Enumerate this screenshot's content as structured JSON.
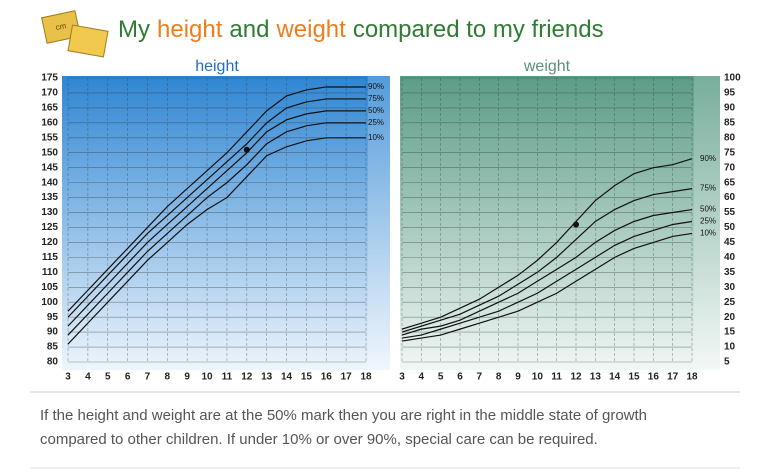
{
  "title_parts": [
    {
      "text": "My",
      "color": "#2e7d32"
    },
    {
      "text": "height",
      "color": "#f07d1a"
    },
    {
      "text": "and",
      "color": "#2e7d32"
    },
    {
      "text": "weight",
      "color": "#f07d1a"
    },
    {
      "text": "compared to my friends",
      "color": "#2e7d32"
    }
  ],
  "caption": [
    "If the height and weight are at the 50% mark then you are right in the middle state of growth",
    "compared to other children. If under 10% or over 90%, special care can be required."
  ],
  "chart_data": [
    {
      "type": "line",
      "title": "height",
      "title_color": "#1f6fc0",
      "y_axis_position": "left",
      "x": [
        3,
        4,
        5,
        6,
        7,
        8,
        9,
        10,
        11,
        12,
        13,
        14,
        15,
        16,
        17,
        18
      ],
      "xlim": [
        3,
        18
      ],
      "xticks": [
        3,
        4,
        5,
        6,
        7,
        8,
        9,
        10,
        11,
        12,
        13,
        14,
        15,
        16,
        17,
        18
      ],
      "ylim": [
        80,
        175
      ],
      "yticks": [
        80,
        85,
        90,
        95,
        100,
        105,
        110,
        115,
        120,
        125,
        130,
        135,
        140,
        145,
        150,
        155,
        160,
        165,
        170,
        175
      ],
      "grid": true,
      "series": [
        {
          "name": "90%",
          "color": "#111111",
          "values": [
            97,
            104,
            111,
            118,
            125,
            132,
            138,
            144,
            150,
            157,
            164,
            169,
            171,
            172,
            172,
            172
          ]
        },
        {
          "name": "75%",
          "color": "#111111",
          "values": [
            95,
            102,
            109,
            116,
            123,
            129,
            135,
            141,
            147,
            153,
            160,
            165,
            167,
            168,
            168,
            168
          ]
        },
        {
          "name": "50%",
          "color": "#111111",
          "values": [
            92,
            99,
            106,
            113,
            120,
            126,
            132,
            138,
            144,
            150,
            157,
            161,
            163,
            164,
            164,
            164
          ]
        },
        {
          "name": "25%",
          "color": "#111111",
          "values": [
            89,
            96,
            103,
            110,
            117,
            123,
            129,
            135,
            140,
            146,
            153,
            157,
            159,
            160,
            160,
            160
          ]
        },
        {
          "name": "10%",
          "color": "#111111",
          "values": [
            86,
            93,
            100,
            107,
            114,
            120,
            126,
            131,
            135,
            142,
            149,
            152,
            154,
            155,
            155,
            155
          ]
        }
      ],
      "point": {
        "x": 12,
        "y": 151
      }
    },
    {
      "type": "line",
      "title": "weight",
      "title_color": "#5a8f7b",
      "y_axis_position": "right",
      "x": [
        3,
        4,
        5,
        6,
        7,
        8,
        9,
        10,
        11,
        12,
        13,
        14,
        15,
        16,
        17,
        18
      ],
      "xlim": [
        3,
        18
      ],
      "xticks": [
        3,
        4,
        5,
        6,
        7,
        8,
        9,
        10,
        11,
        12,
        13,
        14,
        15,
        16,
        17,
        18
      ],
      "ylim": [
        5,
        100
      ],
      "yticks": [
        5,
        10,
        15,
        20,
        25,
        30,
        35,
        40,
        45,
        50,
        55,
        60,
        65,
        70,
        75,
        80,
        85,
        90,
        95,
        100
      ],
      "grid": true,
      "series": [
        {
          "name": "90%",
          "color": "#111111",
          "values": [
            16,
            18,
            20,
            23,
            26,
            30,
            34,
            39,
            45,
            52,
            59,
            64,
            68,
            70,
            71,
            73
          ]
        },
        {
          "name": "75%",
          "color": "#111111",
          "values": [
            15,
            17,
            19,
            21,
            24,
            27,
            31,
            35,
            40,
            46,
            52,
            56,
            59,
            61,
            62,
            63
          ]
        },
        {
          "name": "50%",
          "color": "#111111",
          "values": [
            14,
            16,
            17,
            19,
            22,
            25,
            28,
            32,
            36,
            40,
            45,
            49,
            52,
            54,
            55,
            56
          ]
        },
        {
          "name": "25%",
          "color": "#111111",
          "values": [
            13,
            14,
            16,
            18,
            20,
            22,
            25,
            28,
            32,
            36,
            40,
            44,
            47,
            49,
            51,
            52
          ]
        },
        {
          "name": "10%",
          "color": "#111111",
          "values": [
            12,
            13,
            14,
            16,
            18,
            20,
            22,
            25,
            28,
            32,
            36,
            40,
            43,
            45,
            47,
            48
          ]
        }
      ],
      "point": {
        "x": 12,
        "y": 51
      }
    }
  ]
}
